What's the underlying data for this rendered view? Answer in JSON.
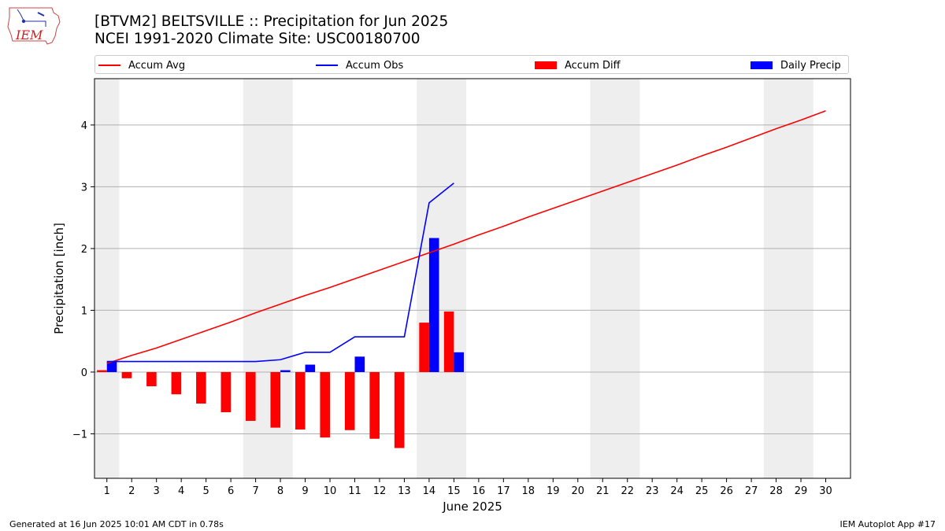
{
  "logo_text": "IEM",
  "chart_data": {
    "type": "bar",
    "title": "[BTVM2] BELTSVILLE :: Precipitation for Jun 2025",
    "subtitle": "NCEI 1991-2020 Climate Site: USC00180700",
    "xlabel": "June 2025",
    "ylabel": "Precipitation [inch]",
    "xlim": [
      0.5,
      31.0
    ],
    "ylim": [
      -1.72,
      4.75
    ],
    "x_ticks": [
      1,
      2,
      3,
      4,
      5,
      6,
      7,
      8,
      9,
      10,
      11,
      12,
      13,
      14,
      15,
      16,
      17,
      18,
      19,
      20,
      21,
      22,
      23,
      24,
      25,
      26,
      27,
      28,
      29,
      30
    ],
    "y_ticks": [
      -1,
      0,
      1,
      2,
      3,
      4
    ],
    "y_tick_labels": [
      "−1",
      "0",
      "1",
      "2",
      "3",
      "4"
    ],
    "grid": "horizontal",
    "legend_position": "top",
    "weekend_shading": [
      [
        0.5,
        1.5
      ],
      [
        6.5,
        8.5
      ],
      [
        13.5,
        15.5
      ],
      [
        20.5,
        22.5
      ],
      [
        27.5,
        29.5
      ]
    ],
    "series": [
      {
        "name": "Accum Avg",
        "kind": "line",
        "color": "#ff0000",
        "x": [
          1,
          2,
          3,
          4,
          5,
          6,
          7,
          8,
          9,
          10,
          11,
          12,
          13,
          14,
          15,
          16,
          17,
          18,
          19,
          20,
          21,
          22,
          23,
          24,
          25,
          26,
          27,
          28,
          29,
          30
        ],
        "values": [
          0.14,
          0.27,
          0.39,
          0.53,
          0.67,
          0.81,
          0.96,
          1.1,
          1.24,
          1.37,
          1.51,
          1.65,
          1.79,
          1.93,
          2.07,
          2.22,
          2.36,
          2.51,
          2.65,
          2.79,
          2.93,
          3.07,
          3.21,
          3.35,
          3.5,
          3.64,
          3.79,
          3.94,
          4.08,
          4.23
        ]
      },
      {
        "name": "Accum Obs",
        "kind": "line",
        "color": "#0000ff",
        "x": [
          1,
          2,
          3,
          4,
          5,
          6,
          7,
          8,
          9,
          10,
          11,
          12,
          13,
          14,
          15
        ],
        "values": [
          0.17,
          0.17,
          0.17,
          0.17,
          0.17,
          0.17,
          0.17,
          0.2,
          0.32,
          0.32,
          0.57,
          0.57,
          0.57,
          2.74,
          3.06
        ]
      },
      {
        "name": "Accum Diff",
        "kind": "bar",
        "color": "#ff0000",
        "x": [
          1,
          2,
          3,
          4,
          5,
          6,
          7,
          8,
          9,
          10,
          11,
          12,
          13,
          14,
          15
        ],
        "values": [
          0.03,
          -0.1,
          -0.23,
          -0.36,
          -0.51,
          -0.65,
          -0.79,
          -0.9,
          -0.93,
          -1.06,
          -0.94,
          -1.08,
          -1.23,
          0.8,
          0.98
        ]
      },
      {
        "name": "Daily Precip",
        "kind": "bar",
        "color": "#0000ff",
        "x": [
          1,
          2,
          3,
          4,
          5,
          6,
          7,
          8,
          9,
          10,
          11,
          12,
          13,
          14,
          15
        ],
        "values": [
          0.17,
          0,
          0,
          0,
          0,
          0,
          0,
          0.03,
          0.12,
          0,
          0.25,
          0,
          0,
          2.17,
          0.32
        ]
      }
    ]
  },
  "footer": {
    "left": "Generated at 16 Jun 2025 10:01 AM CDT in 0.78s",
    "right": "IEM Autoplot App #17"
  }
}
